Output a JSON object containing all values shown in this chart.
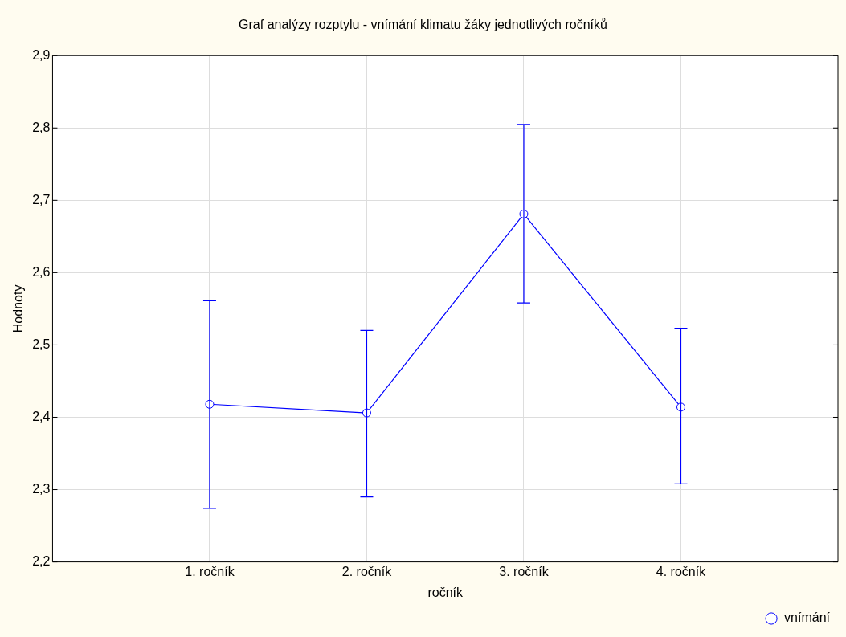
{
  "chart_data": {
    "type": "line",
    "title": "Graf analýzy rozptylu - vnímání klimatu žáky jednotlivých ročníků",
    "xlabel": "ročník",
    "ylabel": "Hodnoty",
    "categories": [
      "1. ročník",
      "2. ročník",
      "3. ročník",
      "4. ročník"
    ],
    "series": [
      {
        "name": "vnímání",
        "color": "#0000ff",
        "values": [
          2.418,
          2.406,
          2.681,
          2.414
        ],
        "errors": [
          [
            2.274,
            2.561
          ],
          [
            2.29,
            2.52
          ],
          [
            2.558,
            2.805
          ],
          [
            2.308,
            2.523
          ]
        ]
      }
    ],
    "ylim": [
      2.2,
      2.9
    ],
    "yticks": [
      {
        "value": 2.2,
        "label": "2,2"
      },
      {
        "value": 2.3,
        "label": "2,3"
      },
      {
        "value": 2.4,
        "label": "2,4"
      },
      {
        "value": 2.5,
        "label": "2,5"
      },
      {
        "value": 2.6,
        "label": "2,6"
      },
      {
        "value": 2.7,
        "label": "2,7"
      },
      {
        "value": 2.8,
        "label": "2,8"
      },
      {
        "value": 2.9,
        "label": "2,9"
      }
    ],
    "grid": true,
    "legend": "bottom right",
    "marker": "circle",
    "line_style": "solid"
  }
}
